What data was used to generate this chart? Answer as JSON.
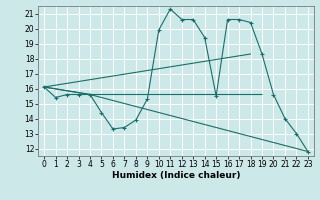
{
  "xlabel": "Humidex (Indice chaleur)",
  "bg_color": "#cce8e8",
  "grid_color": "#ffffff",
  "line_color": "#1a6e6a",
  "xlim": [
    -0.5,
    23.5
  ],
  "ylim": [
    11.5,
    21.5
  ],
  "yticks": [
    12,
    13,
    14,
    15,
    16,
    17,
    18,
    19,
    20,
    21
  ],
  "xticks": [
    0,
    1,
    2,
    3,
    4,
    5,
    6,
    7,
    8,
    9,
    10,
    11,
    12,
    13,
    14,
    15,
    16,
    17,
    18,
    19,
    20,
    21,
    22,
    23
  ],
  "line1_x": [
    0,
    1,
    2,
    3,
    4,
    5,
    6,
    7,
    8,
    9,
    10,
    11,
    12,
    13,
    14,
    15,
    16,
    17,
    18,
    19,
    20,
    21,
    22,
    23
  ],
  "line1_y": [
    16.1,
    15.4,
    15.6,
    15.6,
    15.6,
    14.4,
    13.3,
    13.4,
    13.9,
    15.3,
    19.9,
    21.3,
    20.6,
    20.6,
    19.4,
    15.5,
    20.6,
    20.6,
    20.4,
    18.3,
    15.6,
    14.0,
    13.0,
    11.8
  ],
  "line2_x": [
    0,
    4,
    19
  ],
  "line2_y": [
    16.1,
    15.6,
    15.6
  ],
  "line3_x": [
    0,
    18
  ],
  "line3_y": [
    16.1,
    18.3
  ],
  "line4_x": [
    0,
    4,
    23
  ],
  "line4_y": [
    16.1,
    15.6,
    11.8
  ],
  "tick_fontsize": 5.5,
  "xlabel_fontsize": 6.5
}
